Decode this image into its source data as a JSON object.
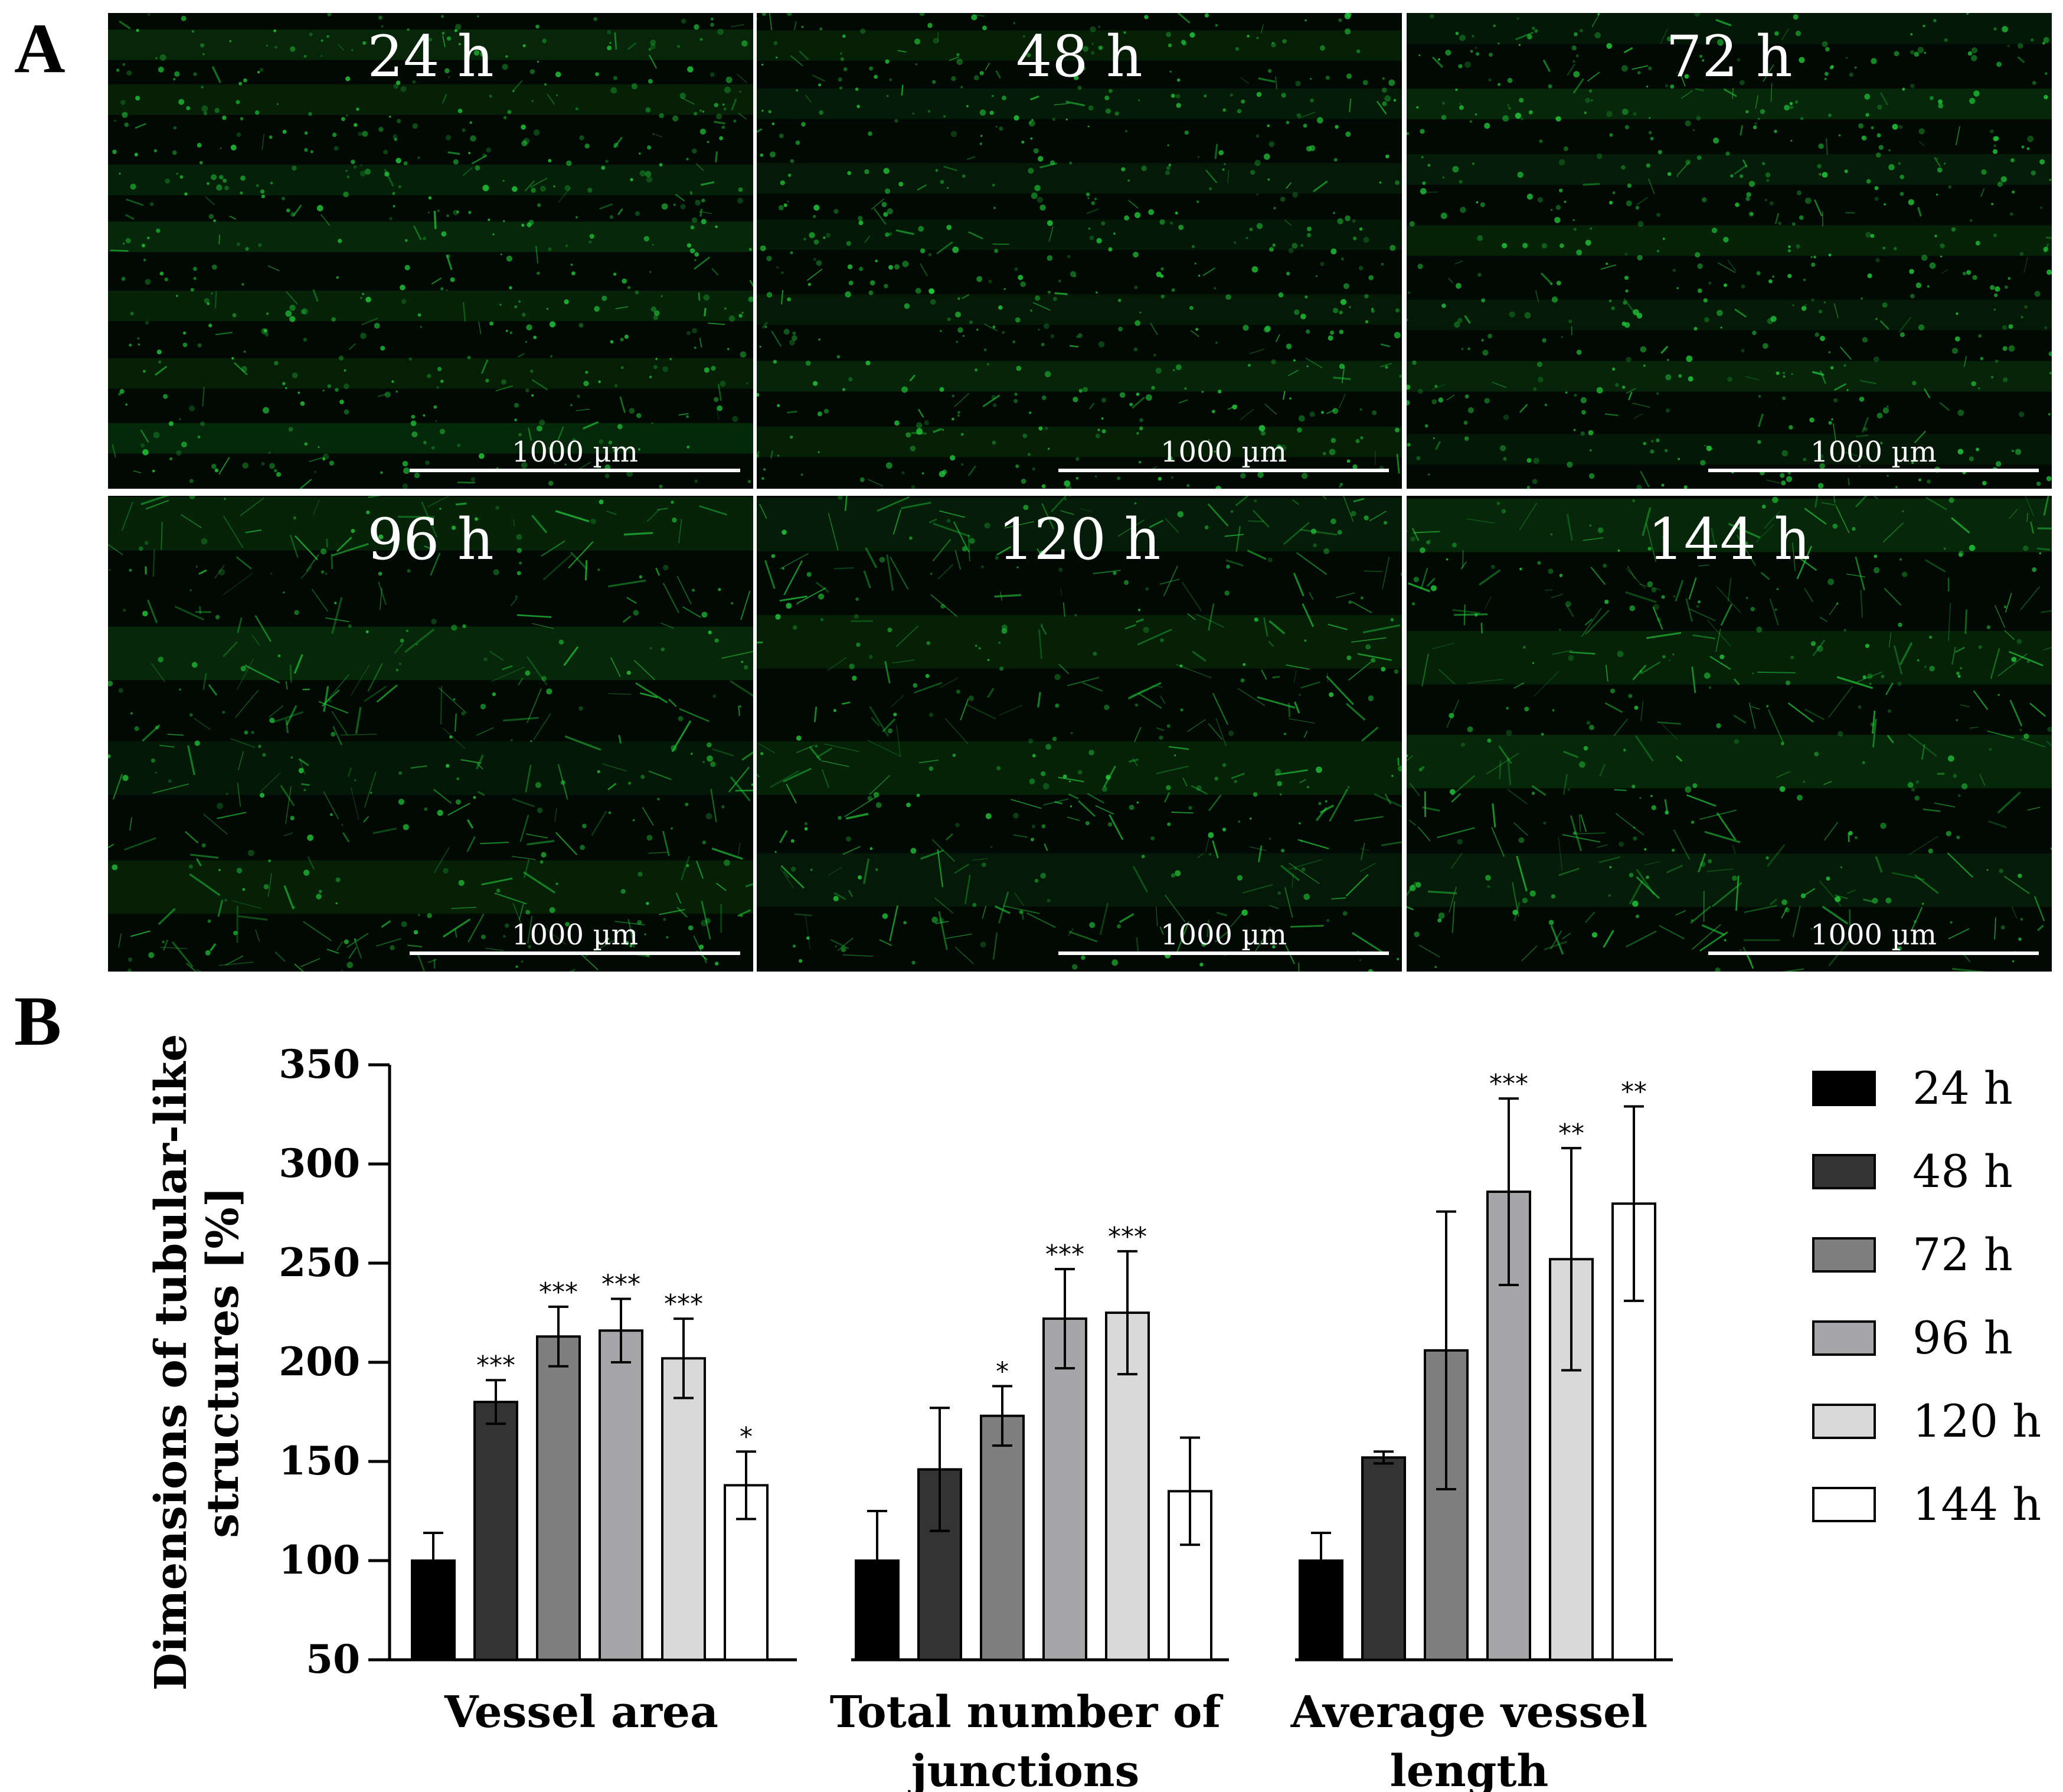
{
  "panel_labels": {
    "a": "A",
    "b": "B"
  },
  "micrographs": [
    {
      "time": "24 h",
      "scale_bar": "1000 µm"
    },
    {
      "time": "48 h",
      "scale_bar": "1000 µm"
    },
    {
      "time": "72 h",
      "scale_bar": "1000 µm"
    },
    {
      "time": "96 h",
      "scale_bar": "1000 µm"
    },
    {
      "time": "120 h",
      "scale_bar": "1000 µm"
    },
    {
      "time": "144 h",
      "scale_bar": "1000 µm"
    }
  ],
  "colors": {
    "fluorescence": "#22c83a",
    "background": "#020803",
    "series": [
      "#000000",
      "#333333",
      "#7f7f7f",
      "#a6a6a8",
      "#d9d9d9",
      "#ffffff"
    ]
  },
  "chart_data": {
    "type": "bar",
    "ylabel_lines": [
      "Dimensions of tubular-like",
      "structures [%]"
    ],
    "ylim": [
      50,
      350
    ],
    "yticks": [
      50,
      100,
      150,
      200,
      250,
      300,
      350
    ],
    "categories": [
      {
        "lines": [
          "Vessel area"
        ]
      },
      {
        "lines": [
          "Total number of",
          "junctions"
        ]
      },
      {
        "lines": [
          "Average vessel",
          "length"
        ]
      }
    ],
    "series": [
      {
        "name": "24 h",
        "values": [
          100,
          100,
          100
        ],
        "errors": [
          14,
          25,
          14
        ],
        "sig": [
          "",
          "",
          ""
        ]
      },
      {
        "name": "48 h",
        "values": [
          180,
          146,
          152
        ],
        "errors": [
          11,
          31,
          3
        ],
        "sig": [
          "***",
          "",
          ""
        ]
      },
      {
        "name": "72 h",
        "values": [
          213,
          173,
          206
        ],
        "errors": [
          15,
          15,
          70
        ],
        "sig": [
          "***",
          "*",
          ""
        ]
      },
      {
        "name": "96 h",
        "values": [
          216,
          222,
          286
        ],
        "errors": [
          16,
          25,
          47
        ],
        "sig": [
          "***",
          "***",
          "***"
        ]
      },
      {
        "name": "120 h",
        "values": [
          202,
          225,
          252
        ],
        "errors": [
          20,
          31,
          56
        ],
        "sig": [
          "***",
          "***",
          "**"
        ]
      },
      {
        "name": "144 h",
        "values": [
          138,
          135,
          280
        ],
        "errors": [
          17,
          27,
          49
        ],
        "sig": [
          "*",
          "",
          "**"
        ]
      }
    ],
    "legend_position": "right"
  }
}
